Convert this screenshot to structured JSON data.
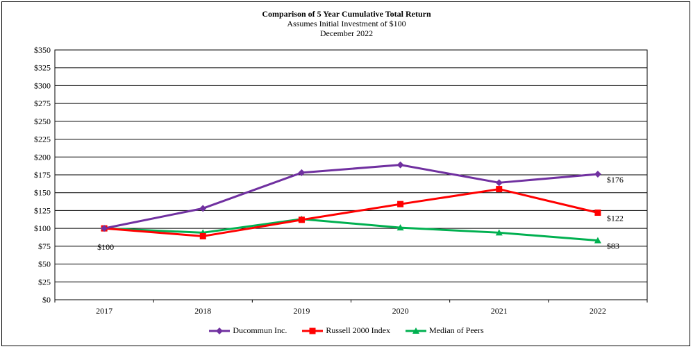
{
  "chart_data": {
    "type": "line",
    "title": "Comparison of 5 Year Cumulative Total Return",
    "subtitle": "Assumes Initial Investment of $100",
    "subtitle2": "December 2022",
    "xlabel": "",
    "ylabel": "",
    "categories": [
      "2017",
      "2018",
      "2019",
      "2020",
      "2021",
      "2022"
    ],
    "ylim": [
      0,
      350
    ],
    "yticks": [
      0,
      25,
      50,
      75,
      100,
      125,
      150,
      175,
      200,
      225,
      250,
      275,
      300,
      325,
      350
    ],
    "ytick_labels": [
      "$0",
      "$25",
      "$50",
      "$75",
      "$100",
      "$125",
      "$150",
      "$175",
      "$200",
      "$225",
      "$250",
      "$275",
      "$300",
      "$325",
      "$350"
    ],
    "grid": true,
    "legend_position": "bottom",
    "series": [
      {
        "name": "Ducommun Inc.",
        "color": "#7030A0",
        "marker": "diamond",
        "values": [
          100,
          128,
          178,
          189,
          164,
          176
        ]
      },
      {
        "name": "Russell 2000 Index",
        "color": "#FF0000",
        "marker": "square",
        "values": [
          100,
          89,
          112,
          134,
          155,
          122
        ]
      },
      {
        "name": "Median of Peers",
        "color": "#00B050",
        "marker": "triangle",
        "values": [
          100,
          94,
          113,
          101,
          94,
          83
        ]
      }
    ],
    "annotations": [
      {
        "text": "$100",
        "x": "2017",
        "y": 100,
        "series": 0
      },
      {
        "text": "$176",
        "x": "2022",
        "y": 176,
        "series": 0
      },
      {
        "text": "$122",
        "x": "2022",
        "y": 122,
        "series": 1
      },
      {
        "text": "$83",
        "x": "2022",
        "y": 83,
        "series": 2
      }
    ]
  }
}
